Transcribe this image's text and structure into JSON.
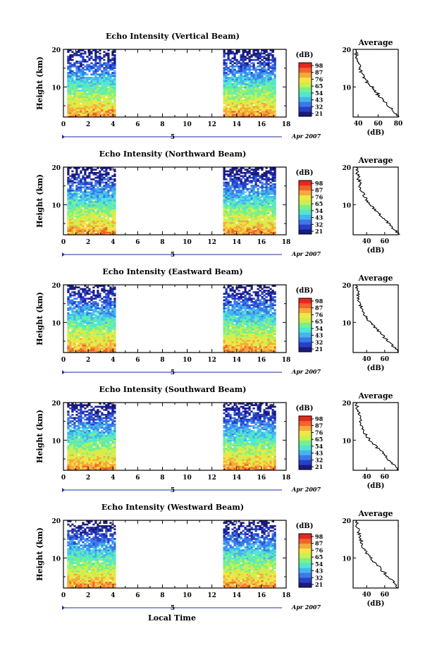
{
  "figure": {
    "xlabel_bottom": "Local Time"
  },
  "colorbar": {
    "label": "(dB)",
    "ticks": [
      "98",
      "87",
      "76",
      "65",
      "54",
      "43",
      "32",
      "21"
    ],
    "colors": [
      "#1a1a80",
      "#2840c8",
      "#3c78e8",
      "#46b4f0",
      "#50e6d2",
      "#78f08c",
      "#c8f050",
      "#f0e646",
      "#f5aa3c",
      "#f0642d",
      "#e6281e"
    ]
  },
  "chart_data": [
    {
      "type": "heatmap",
      "title": "Echo Intensity (Vertical Beam)",
      "ylabel": "Height (km)",
      "xlim": [
        0,
        18
      ],
      "ylim": [
        2,
        20
      ],
      "x_ticks": [
        "0",
        "2",
        "4",
        "6",
        "8",
        "10",
        "12",
        "14",
        "16",
        "18"
      ],
      "y_ticks": [
        "10",
        "20"
      ],
      "date_label": "Apr 2007",
      "day_label": "5",
      "data_segments": [
        [
          0.3,
          4.2
        ],
        [
          12.9,
          17.1
        ]
      ],
      "average": {
        "title": "Average",
        "xlabel": "(dB)",
        "x_ticks": [
          "40",
          "60",
          "80"
        ],
        "xlim": [
          35,
          80
        ],
        "profile": [
          [
            80,
            2
          ],
          [
            78,
            3
          ],
          [
            74,
            4
          ],
          [
            70,
            5
          ],
          [
            66,
            6
          ],
          [
            63,
            7
          ],
          [
            60,
            8
          ],
          [
            57,
            9
          ],
          [
            54,
            10
          ],
          [
            50,
            11
          ],
          [
            47,
            12
          ],
          [
            45,
            13
          ],
          [
            43,
            14
          ],
          [
            42,
            15
          ],
          [
            41,
            16
          ],
          [
            40,
            17
          ],
          [
            39,
            18
          ],
          [
            38,
            19
          ],
          [
            37,
            20
          ]
        ]
      }
    },
    {
      "type": "heatmap",
      "title": "Echo Intensity (Northward Beam)",
      "ylabel": "Height (km)",
      "xlim": [
        0,
        18
      ],
      "ylim": [
        2,
        20
      ],
      "x_ticks": [
        "0",
        "2",
        "4",
        "6",
        "8",
        "10",
        "12",
        "14",
        "16",
        "18"
      ],
      "y_ticks": [
        "10",
        "20"
      ],
      "date_label": "Apr 2007",
      "day_label": "5",
      "data_segments": [
        [
          0.3,
          4.2
        ],
        [
          12.9,
          17.1
        ]
      ],
      "average": {
        "title": "Average",
        "xlabel": "(dB)",
        "x_ticks": [
          "40",
          "60"
        ],
        "xlim": [
          25,
          75
        ],
        "profile": [
          [
            75,
            2
          ],
          [
            72,
            3
          ],
          [
            68,
            4
          ],
          [
            64,
            5
          ],
          [
            60,
            6
          ],
          [
            56,
            7
          ],
          [
            52,
            8
          ],
          [
            48,
            9
          ],
          [
            44,
            10
          ],
          [
            40,
            11
          ],
          [
            38,
            12
          ],
          [
            36,
            13
          ],
          [
            34,
            14
          ],
          [
            33,
            15
          ],
          [
            32,
            16
          ],
          [
            31,
            17
          ],
          [
            30,
            18
          ],
          [
            29,
            19
          ],
          [
            28,
            20
          ]
        ]
      }
    },
    {
      "type": "heatmap",
      "title": "Echo Intensity (Eastward Beam)",
      "ylabel": "Height (km)",
      "xlim": [
        0,
        18
      ],
      "ylim": [
        2,
        20
      ],
      "x_ticks": [
        "0",
        "2",
        "4",
        "6",
        "8",
        "10",
        "12",
        "14",
        "16",
        "18"
      ],
      "y_ticks": [
        "10",
        "20"
      ],
      "date_label": "Apr 2007",
      "day_label": "5",
      "data_segments": [
        [
          0.3,
          4.2
        ],
        [
          12.9,
          17.1
        ]
      ],
      "average": {
        "title": "Average",
        "xlabel": "(dB)",
        "x_ticks": [
          "40",
          "60"
        ],
        "xlim": [
          25,
          75
        ],
        "profile": [
          [
            75,
            2
          ],
          [
            72,
            3
          ],
          [
            68,
            4
          ],
          [
            64,
            5
          ],
          [
            60,
            6
          ],
          [
            56,
            7
          ],
          [
            52,
            8
          ],
          [
            48,
            9
          ],
          [
            44,
            10
          ],
          [
            40,
            11
          ],
          [
            38,
            12
          ],
          [
            36,
            13
          ],
          [
            34,
            14
          ],
          [
            33,
            15
          ],
          [
            32,
            16
          ],
          [
            31,
            17
          ],
          [
            30,
            18
          ],
          [
            29,
            19
          ],
          [
            28,
            20
          ]
        ]
      }
    },
    {
      "type": "heatmap",
      "title": "Echo Intensity (Southward Beam)",
      "ylabel": "Height (km)",
      "xlim": [
        0,
        18
      ],
      "ylim": [
        2,
        20
      ],
      "x_ticks": [
        "0",
        "2",
        "4",
        "6",
        "8",
        "10",
        "12",
        "14",
        "16",
        "18"
      ],
      "y_ticks": [
        "10",
        "20"
      ],
      "date_label": "Apr 2007",
      "day_label": "5",
      "data_segments": [
        [
          0.3,
          4.2
        ],
        [
          12.9,
          17.1
        ]
      ],
      "average": {
        "title": "Average",
        "xlabel": "(dB)",
        "x_ticks": [
          "40",
          "60"
        ],
        "xlim": [
          25,
          75
        ],
        "profile": [
          [
            75,
            2
          ],
          [
            72,
            3
          ],
          [
            68,
            4
          ],
          [
            64,
            5
          ],
          [
            60,
            6
          ],
          [
            56,
            7
          ],
          [
            52,
            8
          ],
          [
            48,
            9
          ],
          [
            44,
            10
          ],
          [
            40,
            11
          ],
          [
            38,
            12
          ],
          [
            36,
            13
          ],
          [
            34,
            14
          ],
          [
            33,
            15
          ],
          [
            32,
            16
          ],
          [
            31,
            17
          ],
          [
            30,
            18
          ],
          [
            29,
            19
          ],
          [
            28,
            20
          ]
        ]
      }
    },
    {
      "type": "heatmap",
      "title": "Echo Intensity (Westward Beam)",
      "ylabel": "Height (km)",
      "xlim": [
        0,
        18
      ],
      "ylim": [
        2,
        20
      ],
      "x_ticks": [
        "0",
        "2",
        "4",
        "6",
        "8",
        "10",
        "12",
        "14",
        "16",
        "18"
      ],
      "y_ticks": [
        "10",
        "20"
      ],
      "date_label": "Apr 2007",
      "day_label": "5",
      "data_segments": [
        [
          0.3,
          4.2
        ],
        [
          12.9,
          17.1
        ]
      ],
      "average": {
        "title": "Average",
        "xlabel": "(dB)",
        "x_ticks": [
          "40",
          "60"
        ],
        "xlim": [
          25,
          75
        ],
        "profile": [
          [
            75,
            2
          ],
          [
            72,
            3
          ],
          [
            68,
            4
          ],
          [
            64,
            5
          ],
          [
            60,
            6
          ],
          [
            56,
            7
          ],
          [
            52,
            8
          ],
          [
            48,
            9
          ],
          [
            44,
            10
          ],
          [
            40,
            11
          ],
          [
            38,
            12
          ],
          [
            36,
            13
          ],
          [
            34,
            14
          ],
          [
            33,
            15
          ],
          [
            32,
            16
          ],
          [
            31,
            17
          ],
          [
            30,
            18
          ],
          [
            29,
            19
          ],
          [
            28,
            20
          ]
        ]
      }
    }
  ]
}
